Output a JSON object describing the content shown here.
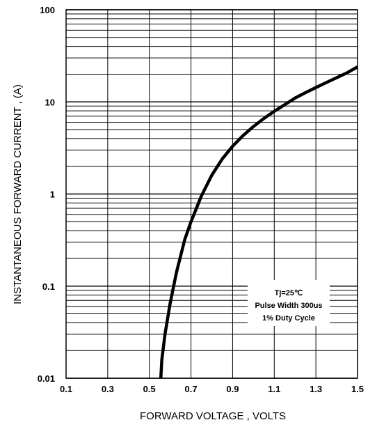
{
  "chart_data": {
    "type": "line",
    "title": "",
    "xlabel": "FORWARD VOLTAGE , VOLTS",
    "ylabel": "INSTANTANEOUS FORWARD CURRENT , (A)",
    "xlim": [
      0.1,
      1.5
    ],
    "ylim": [
      0.01,
      100
    ],
    "yscale": "log",
    "grid": true,
    "x_ticks": [
      0.1,
      0.3,
      0.5,
      0.7,
      0.9,
      1.1,
      1.3,
      1.5
    ],
    "x_tick_labels": [
      "0.1",
      "0.3",
      "0.5",
      "0.7",
      "0.9",
      "1.1",
      "1.3",
      "1.5"
    ],
    "y_ticks": [
      0.01,
      0.1,
      1,
      10,
      100
    ],
    "y_tick_labels": [
      "0.01",
      "0.1",
      "1",
      "10",
      "100"
    ],
    "series": [
      {
        "x": [
          0.555,
          0.56,
          0.575,
          0.6,
          0.63,
          0.67,
          0.7,
          0.75,
          0.8,
          0.85,
          0.9,
          0.95,
          1.0,
          1.05,
          1.1,
          1.15,
          1.2,
          1.25,
          1.3,
          1.35,
          1.4,
          1.45,
          1.5
        ],
        "values": [
          0.01,
          0.016,
          0.03,
          0.065,
          0.14,
          0.32,
          0.5,
          0.95,
          1.6,
          2.4,
          3.3,
          4.3,
          5.4,
          6.6,
          7.9,
          9.3,
          11,
          12.6,
          14.3,
          16.2,
          18.3,
          20.7,
          24
        ]
      }
    ],
    "annotation": [
      "Tj=25℃",
      "Pulse Width 300us",
      "1% Duty Cycle"
    ]
  }
}
